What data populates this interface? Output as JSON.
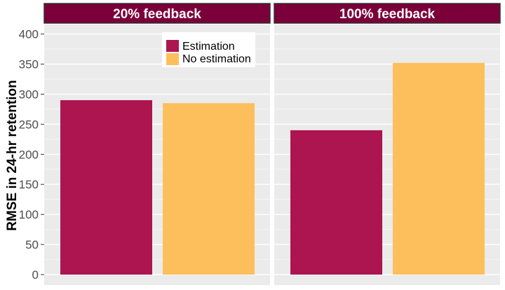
{
  "chart_data": {
    "type": "bar",
    "ylabel": "RMSE in 24-hr retention",
    "ylim": [
      0,
      420
    ],
    "yticks": [
      0,
      50,
      100,
      150,
      200,
      250,
      300,
      350,
      400
    ],
    "grid": true,
    "legend_position": "top-right of first panel",
    "panels": [
      {
        "title": "20% feedback",
        "series_values": {
          "Estimation": 290,
          "No estimation": 285
        }
      },
      {
        "title": "100% feedback",
        "series_values": {
          "Estimation": 240,
          "No estimation": 352
        }
      }
    ],
    "series": [
      {
        "name": "Estimation",
        "color": "#ad1550"
      },
      {
        "name": "No estimation",
        "color": "#fdbf5b"
      }
    ],
    "strip_color": "#7b0039",
    "panel_bg": "#ebebeb"
  }
}
